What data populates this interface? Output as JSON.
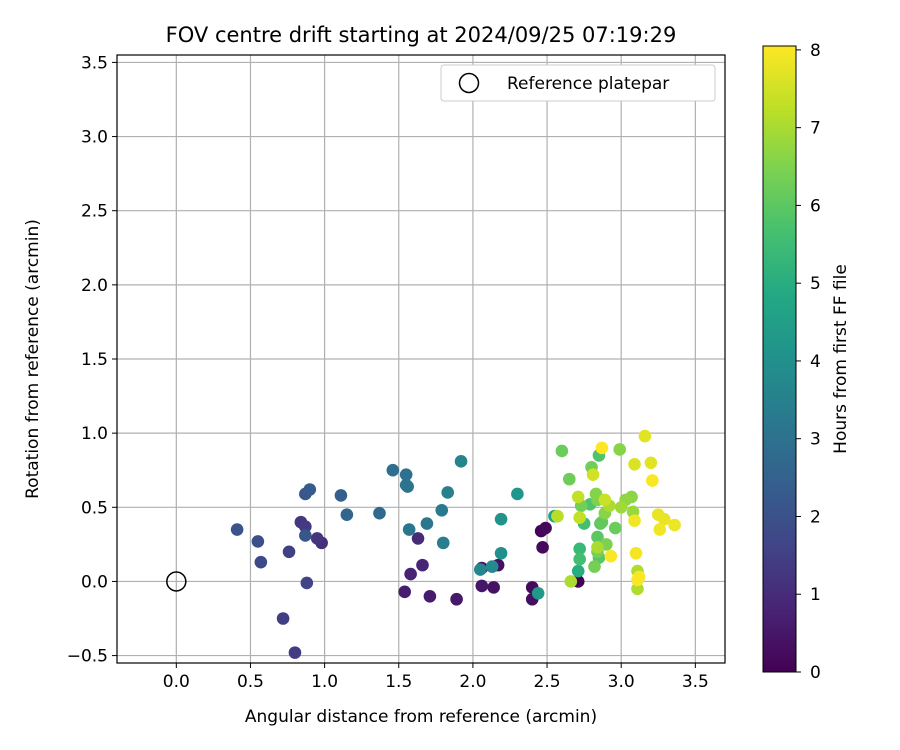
{
  "chart_data": {
    "type": "scatter",
    "title": "FOV centre drift starting at 2024/09/25 07:19:29",
    "xlabel": "Angular distance from reference (arcmin)",
    "ylabel": "Rotation from reference (arcmin)",
    "xlim": [
      -0.4,
      3.7
    ],
    "ylim": [
      -0.55,
      3.55
    ],
    "xticks": [
      0.0,
      0.5,
      1.0,
      1.5,
      2.0,
      2.5,
      3.0,
      3.5
    ],
    "xtick_labels": [
      "0.0",
      "0.5",
      "1.0",
      "1.5",
      "2.0",
      "2.5",
      "3.0",
      "3.5"
    ],
    "yticks": [
      -0.5,
      0.0,
      0.5,
      1.0,
      1.5,
      2.0,
      2.5,
      3.0,
      3.5
    ],
    "ytick_labels": [
      "−0.5",
      "0.0",
      "0.5",
      "1.0",
      "1.5",
      "2.0",
      "2.5",
      "3.0",
      "3.5"
    ],
    "grid": true,
    "legend": {
      "placement": "top-right",
      "entries": [
        "Reference platepar"
      ]
    },
    "reference_point": {
      "x": 0.0,
      "y": 0.0,
      "label": "Reference platepar"
    },
    "colorbar": {
      "label": "Hours from first FF file",
      "colormap": "viridis",
      "range": [
        0,
        8.05
      ],
      "ticks": [
        0,
        1,
        2,
        3,
        4,
        5,
        6,
        7,
        8
      ],
      "tick_labels": [
        "0",
        "1",
        "2",
        "3",
        "4",
        "5",
        "6",
        "7",
        "8"
      ],
      "stops": [
        "#440154",
        "#482475",
        "#414487",
        "#355f8d",
        "#2a788e",
        "#21918c",
        "#22a884",
        "#44bf70",
        "#7ad151",
        "#bddf26",
        "#fde725"
      ]
    },
    "points": [
      {
        "x": 2.71,
        "y": 0.0,
        "h": 0.02
      },
      {
        "x": 2.46,
        "y": 0.34,
        "h": 0.1
      },
      {
        "x": 2.49,
        "y": 0.36,
        "h": 0.15
      },
      {
        "x": 2.47,
        "y": 0.23,
        "h": 0.2
      },
      {
        "x": 2.4,
        "y": -0.04,
        "h": 0.25
      },
      {
        "x": 2.4,
        "y": -0.12,
        "h": 0.3
      },
      {
        "x": 2.17,
        "y": 0.11,
        "h": 0.35
      },
      {
        "x": 2.14,
        "y": -0.04,
        "h": 0.4
      },
      {
        "x": 2.06,
        "y": 0.09,
        "h": 0.45
      },
      {
        "x": 2.06,
        "y": -0.03,
        "h": 0.5
      },
      {
        "x": 1.89,
        "y": -0.12,
        "h": 0.55
      },
      {
        "x": 1.71,
        "y": -0.1,
        "h": 0.6
      },
      {
        "x": 1.54,
        "y": -0.07,
        "h": 0.65
      },
      {
        "x": 1.58,
        "y": 0.05,
        "h": 0.75
      },
      {
        "x": 1.66,
        "y": 0.11,
        "h": 0.85
      },
      {
        "x": 1.63,
        "y": 0.29,
        "h": 0.95
      },
      {
        "x": 0.98,
        "y": 0.26,
        "h": 1.05
      },
      {
        "x": 0.95,
        "y": 0.29,
        "h": 1.2
      },
      {
        "x": 0.84,
        "y": 0.4,
        "h": 1.25
      },
      {
        "x": 0.87,
        "y": 0.37,
        "h": 1.35
      },
      {
        "x": 0.8,
        "y": -0.48,
        "h": 1.4
      },
      {
        "x": 0.72,
        "y": -0.25,
        "h": 1.45
      },
      {
        "x": 0.76,
        "y": 0.2,
        "h": 1.5
      },
      {
        "x": 0.88,
        "y": -0.01,
        "h": 1.6
      },
      {
        "x": 0.57,
        "y": 0.13,
        "h": 1.8
      },
      {
        "x": 0.55,
        "y": 0.27,
        "h": 1.95
      },
      {
        "x": 0.41,
        "y": 0.35,
        "h": 2.05
      },
      {
        "x": 0.87,
        "y": 0.31,
        "h": 2.15
      },
      {
        "x": 0.87,
        "y": 0.59,
        "h": 2.2
      },
      {
        "x": 0.9,
        "y": 0.62,
        "h": 2.3
      },
      {
        "x": 1.11,
        "y": 0.58,
        "h": 2.45
      },
      {
        "x": 1.15,
        "y": 0.45,
        "h": 2.6
      },
      {
        "x": 1.37,
        "y": 0.46,
        "h": 2.75
      },
      {
        "x": 1.46,
        "y": 0.75,
        "h": 2.9
      },
      {
        "x": 1.55,
        "y": 0.72,
        "h": 3.0
      },
      {
        "x": 1.55,
        "y": 0.65,
        "h": 3.05
      },
      {
        "x": 1.56,
        "y": 0.64,
        "h": 3.1
      },
      {
        "x": 1.57,
        "y": 0.35,
        "h": 3.15
      },
      {
        "x": 1.69,
        "y": 0.39,
        "h": 3.2
      },
      {
        "x": 1.79,
        "y": 0.48,
        "h": 3.3
      },
      {
        "x": 1.8,
        "y": 0.26,
        "h": 3.4
      },
      {
        "x": 1.83,
        "y": 0.6,
        "h": 3.5
      },
      {
        "x": 1.92,
        "y": 0.81,
        "h": 3.6
      },
      {
        "x": 2.05,
        "y": 0.08,
        "h": 3.7
      },
      {
        "x": 2.13,
        "y": 0.1,
        "h": 3.8
      },
      {
        "x": 2.19,
        "y": 0.19,
        "h": 4.0
      },
      {
        "x": 2.19,
        "y": 0.42,
        "h": 4.1
      },
      {
        "x": 2.3,
        "y": 0.59,
        "h": 4.2
      },
      {
        "x": 2.44,
        "y": -0.08,
        "h": 4.3
      },
      {
        "x": 2.55,
        "y": 0.44,
        "h": 4.5
      },
      {
        "x": 2.71,
        "y": 0.07,
        "h": 5.0
      },
      {
        "x": 2.72,
        "y": 0.22,
        "h": 5.4
      },
      {
        "x": 2.72,
        "y": 0.15,
        "h": 5.6
      },
      {
        "x": 2.75,
        "y": 0.39,
        "h": 5.6
      },
      {
        "x": 2.85,
        "y": 0.85,
        "h": 5.8
      },
      {
        "x": 2.79,
        "y": 0.52,
        "h": 5.8
      },
      {
        "x": 2.85,
        "y": 0.16,
        "h": 5.9
      },
      {
        "x": 2.86,
        "y": 0.39,
        "h": 6.0
      },
      {
        "x": 2.84,
        "y": 0.3,
        "h": 6.0
      },
      {
        "x": 2.87,
        "y": 0.4,
        "h": 6.1
      },
      {
        "x": 2.96,
        "y": 0.36,
        "h": 6.2
      },
      {
        "x": 2.6,
        "y": 0.88,
        "h": 6.2
      },
      {
        "x": 2.65,
        "y": 0.69,
        "h": 6.25
      },
      {
        "x": 2.8,
        "y": 0.77,
        "h": 6.3
      },
      {
        "x": 2.73,
        "y": 0.51,
        "h": 6.3
      },
      {
        "x": 2.82,
        "y": 0.1,
        "h": 6.35
      },
      {
        "x": 2.84,
        "y": 0.2,
        "h": 6.4
      },
      {
        "x": 2.9,
        "y": 0.25,
        "h": 6.45
      },
      {
        "x": 2.84,
        "y": 0.55,
        "h": 6.5
      },
      {
        "x": 2.83,
        "y": 0.59,
        "h": 6.55
      },
      {
        "x": 2.89,
        "y": 0.46,
        "h": 6.6
      },
      {
        "x": 2.99,
        "y": 0.89,
        "h": 6.6
      },
      {
        "x": 3.07,
        "y": 0.57,
        "h": 6.65
      },
      {
        "x": 3.03,
        "y": 0.55,
        "h": 6.7
      },
      {
        "x": 3.08,
        "y": 0.47,
        "h": 6.8
      },
      {
        "x": 3.0,
        "y": 0.5,
        "h": 6.9
      },
      {
        "x": 2.92,
        "y": 0.51,
        "h": 7.0
      },
      {
        "x": 2.84,
        "y": 0.23,
        "h": 7.0
      },
      {
        "x": 2.66,
        "y": 0.0,
        "h": 7.05
      },
      {
        "x": 3.11,
        "y": -0.05,
        "h": 7.1
      },
      {
        "x": 3.11,
        "y": 0.07,
        "h": 7.1
      },
      {
        "x": 2.57,
        "y": 0.44,
        "h": 7.2
      },
      {
        "x": 2.71,
        "y": 0.57,
        "h": 7.3
      },
      {
        "x": 2.72,
        "y": 0.43,
        "h": 7.3
      },
      {
        "x": 2.89,
        "y": 0.55,
        "h": 7.4
      },
      {
        "x": 2.81,
        "y": 0.72,
        "h": 7.5
      },
      {
        "x": 3.09,
        "y": 0.79,
        "h": 7.6
      },
      {
        "x": 3.16,
        "y": 0.98,
        "h": 7.7
      },
      {
        "x": 3.2,
        "y": 0.8,
        "h": 7.7
      },
      {
        "x": 3.25,
        "y": 0.45,
        "h": 7.8
      },
      {
        "x": 3.29,
        "y": 0.42,
        "h": 7.8
      },
      {
        "x": 3.36,
        "y": 0.38,
        "h": 7.85
      },
      {
        "x": 3.26,
        "y": 0.35,
        "h": 7.9
      },
      {
        "x": 3.09,
        "y": 0.41,
        "h": 7.9
      },
      {
        "x": 3.1,
        "y": 0.19,
        "h": 7.95
      },
      {
        "x": 3.12,
        "y": 0.03,
        "h": 8.0
      },
      {
        "x": 3.11,
        "y": 0.01,
        "h": 8.0
      },
      {
        "x": 2.93,
        "y": 0.17,
        "h": 8.0
      },
      {
        "x": 3.21,
        "y": 0.68,
        "h": 8.0
      },
      {
        "x": 2.87,
        "y": 0.9,
        "h": 8.05
      }
    ]
  }
}
